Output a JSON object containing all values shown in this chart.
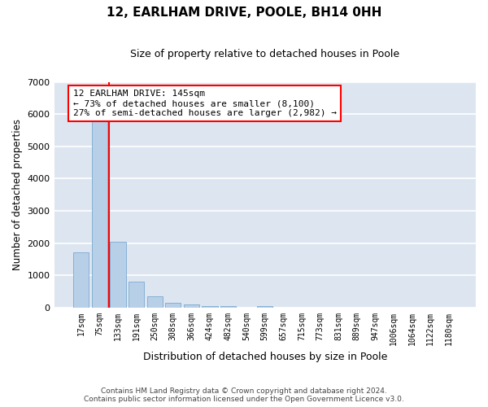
{
  "title": "12, EARLHAM DRIVE, POOLE, BH14 0HH",
  "subtitle": "Size of property relative to detached houses in Poole",
  "xlabel": "Distribution of detached houses by size in Poole",
  "ylabel": "Number of detached properties",
  "bar_color": "#b8cfe8",
  "bar_edgecolor": "#7aaad0",
  "background_color": "#dde6f0",
  "grid_color": "#ffffff",
  "categories": [
    "17sqm",
    "75sqm",
    "133sqm",
    "191sqm",
    "250sqm",
    "308sqm",
    "366sqm",
    "424sqm",
    "482sqm",
    "540sqm",
    "599sqm",
    "657sqm",
    "715sqm",
    "773sqm",
    "831sqm",
    "889sqm",
    "947sqm",
    "1006sqm",
    "1064sqm",
    "1122sqm",
    "1180sqm"
  ],
  "values": [
    1700,
    5800,
    2050,
    800,
    350,
    150,
    90,
    50,
    50,
    0,
    50,
    0,
    0,
    0,
    0,
    0,
    0,
    0,
    0,
    0,
    0
  ],
  "ylim": [
    0,
    7000
  ],
  "yticks": [
    0,
    1000,
    2000,
    3000,
    4000,
    5000,
    6000,
    7000
  ],
  "red_line_x": 1.5,
  "annotation_text_line1": "12 EARLHAM DRIVE: 145sqm",
  "annotation_text_line2": "← 73% of detached houses are smaller (8,100)",
  "annotation_text_line3": "27% of semi-detached houses are larger (2,982) →",
  "footer_line1": "Contains HM Land Registry data © Crown copyright and database right 2024.",
  "footer_line2": "Contains public sector information licensed under the Open Government Licence v3.0."
}
